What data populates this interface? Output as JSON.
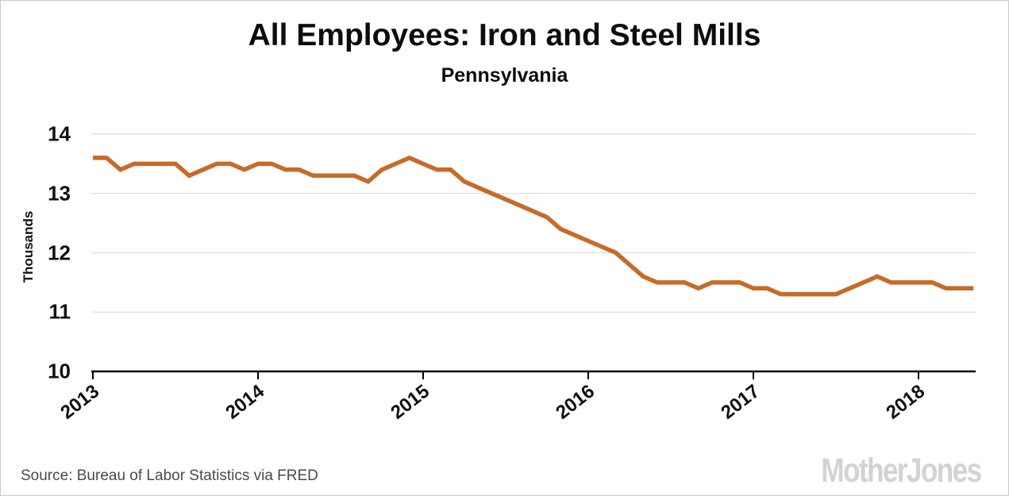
{
  "chart_data": {
    "type": "line",
    "title": "All Employees: Iron and Steel Mills",
    "subtitle": "Pennsylvania",
    "ylabel": "Thousands",
    "source_text": "Source: Bureau of Labor Statistics via FRED",
    "watermark": "MotherJones",
    "frequency": "monthly",
    "x_start": "2013-01",
    "x_end": "2018-05",
    "x_tick_labels": [
      "2013",
      "2014",
      "2015",
      "2016",
      "2017",
      "2018"
    ],
    "y_tick_labels": [
      "14",
      "13",
      "12",
      "11",
      "10"
    ],
    "y_ticks": [
      14,
      13,
      12,
      11,
      10
    ],
    "ylim": [
      10,
      14
    ],
    "grid": "horizontal",
    "legend_position": "none",
    "line_color": "#c76b29",
    "grid_color": "#e3e3e3",
    "axis_color": "#000000",
    "series": [
      {
        "name": "All Employees: Iron and Steel Mills, Pennsylvania (Thousands)",
        "values": [
          13.6,
          13.6,
          13.4,
          13.5,
          13.5,
          13.5,
          13.5,
          13.3,
          13.4,
          13.5,
          13.5,
          13.4,
          13.5,
          13.5,
          13.4,
          13.4,
          13.3,
          13.3,
          13.3,
          13.3,
          13.2,
          13.4,
          13.5,
          13.6,
          13.5,
          13.4,
          13.4,
          13.2,
          13.1,
          13.0,
          12.9,
          12.8,
          12.7,
          12.6,
          12.4,
          12.3,
          12.2,
          12.1,
          12.0,
          11.8,
          11.6,
          11.5,
          11.5,
          11.5,
          11.4,
          11.5,
          11.5,
          11.5,
          11.4,
          11.4,
          11.3,
          11.3,
          11.3,
          11.3,
          11.3,
          11.4,
          11.5,
          11.6,
          11.5,
          11.5,
          11.5,
          11.5,
          11.4,
          11.4,
          11.4
        ]
      }
    ]
  }
}
